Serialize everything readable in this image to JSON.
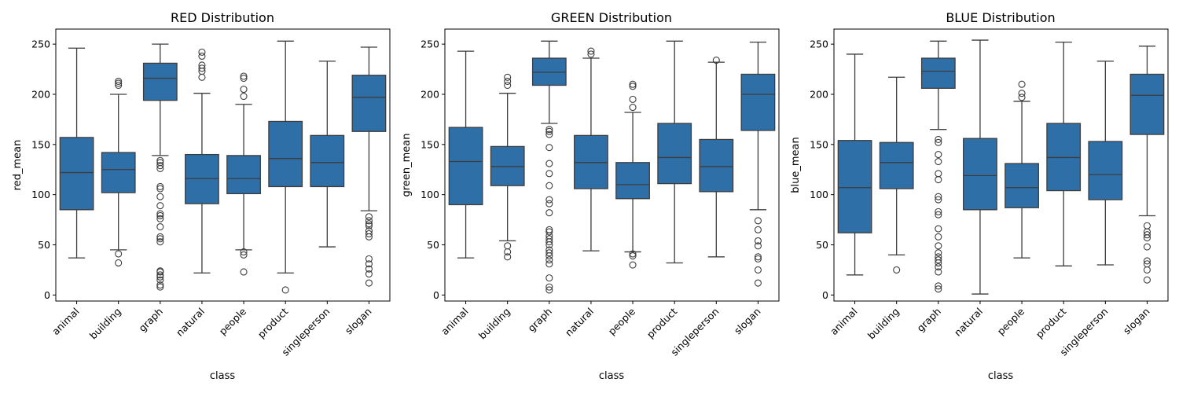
{
  "chart_data": [
    {
      "type": "box",
      "title": "RED Distribution",
      "xlabel": "class",
      "ylabel": "red_mean",
      "ylim": [
        -6,
        265
      ],
      "yticks": [
        0,
        50,
        100,
        150,
        200,
        250
      ],
      "categories": [
        "animal",
        "building",
        "graph",
        "natural",
        "people",
        "product",
        "singleperson",
        "slogan"
      ],
      "color": "#2f6fa8",
      "boxes": [
        {
          "whislo": 37,
          "q1": 85,
          "med": 122,
          "q3": 157,
          "whishi": 246,
          "fliers": []
        },
        {
          "whislo": 45,
          "q1": 102,
          "med": 125,
          "q3": 142,
          "whishi": 200,
          "fliers": [
            32,
            41,
            209,
            211,
            213
          ]
        },
        {
          "whislo": 139,
          "q1": 194,
          "med": 216,
          "q3": 231,
          "whishi": 250,
          "fliers": [
            8,
            10,
            15,
            18,
            20,
            23,
            24,
            53,
            56,
            58,
            68,
            76,
            79,
            81,
            89,
            98,
            106,
            108,
            126,
            129,
            132,
            134
          ]
        },
        {
          "whislo": 22,
          "q1": 91,
          "med": 116,
          "q3": 140,
          "whishi": 201,
          "fliers": [
            217,
            223,
            226,
            229,
            238,
            242
          ]
        },
        {
          "whislo": 45,
          "q1": 101,
          "med": 116,
          "q3": 139,
          "whishi": 190,
          "fliers": [
            23,
            40,
            43,
            198,
            205,
            216,
            218
          ]
        },
        {
          "whislo": 22,
          "q1": 108,
          "med": 136,
          "q3": 173,
          "whishi": 253,
          "fliers": [
            5
          ]
        },
        {
          "whislo": 48,
          "q1": 108,
          "med": 132,
          "q3": 159,
          "whishi": 233,
          "fliers": []
        },
        {
          "whislo": 84,
          "q1": 163,
          "med": 197,
          "q3": 219,
          "whishi": 247,
          "fliers": [
            12,
            21,
            26,
            31,
            36,
            58,
            61,
            64,
            69,
            71,
            74,
            78
          ]
        }
      ]
    },
    {
      "type": "box",
      "title": "GREEN Distribution",
      "xlabel": "class",
      "ylabel": "green_mean",
      "ylim": [
        -6,
        265
      ],
      "yticks": [
        0,
        50,
        100,
        150,
        200,
        250
      ],
      "categories": [
        "animal",
        "building",
        "graph",
        "natural",
        "people",
        "product",
        "singleperson",
        "slogan"
      ],
      "color": "#2f6fa8",
      "boxes": [
        {
          "whislo": 37,
          "q1": 90,
          "med": 133,
          "q3": 167,
          "whishi": 243,
          "fliers": []
        },
        {
          "whislo": 54,
          "q1": 109,
          "med": 128,
          "q3": 148,
          "whishi": 201,
          "fliers": [
            38,
            43,
            49,
            209,
            213,
            217
          ]
        },
        {
          "whislo": 171,
          "q1": 209,
          "med": 222,
          "q3": 236,
          "whishi": 253,
          "fliers": [
            5,
            8,
            17,
            31,
            35,
            39,
            42,
            45,
            50,
            53,
            56,
            59,
            63,
            65,
            82,
            91,
            95,
            109,
            121,
            131,
            147,
            160,
            163,
            165
          ]
        },
        {
          "whislo": 44,
          "q1": 106,
          "med": 132,
          "q3": 159,
          "whishi": 236,
          "fliers": [
            240,
            243
          ]
        },
        {
          "whislo": 43,
          "q1": 96,
          "med": 110,
          "q3": 132,
          "whishi": 182,
          "fliers": [
            30,
            39,
            41,
            187,
            195,
            208,
            210
          ]
        },
        {
          "whislo": 32,
          "q1": 111,
          "med": 137,
          "q3": 171,
          "whishi": 253,
          "fliers": []
        },
        {
          "whislo": 38,
          "q1": 103,
          "med": 128,
          "q3": 155,
          "whishi": 232,
          "fliers": [
            234
          ]
        },
        {
          "whislo": 85,
          "q1": 164,
          "med": 200,
          "q3": 220,
          "whishi": 252,
          "fliers": [
            12,
            25,
            36,
            38,
            49,
            54,
            65,
            74
          ]
        }
      ]
    },
    {
      "type": "box",
      "title": "BLUE Distribution",
      "xlabel": "class",
      "ylabel": "blue_mean",
      "ylim": [
        -6,
        265
      ],
      "yticks": [
        0,
        50,
        100,
        150,
        200,
        250
      ],
      "categories": [
        "animal",
        "building",
        "graph",
        "natural",
        "people",
        "product",
        "singleperson",
        "slogan"
      ],
      "color": "#2f6fa8",
      "boxes": [
        {
          "whislo": 20,
          "q1": 62,
          "med": 107,
          "q3": 154,
          "whishi": 240,
          "fliers": []
        },
        {
          "whislo": 40,
          "q1": 106,
          "med": 132,
          "q3": 152,
          "whishi": 217,
          "fliers": [
            25
          ]
        },
        {
          "whislo": 165,
          "q1": 206,
          "med": 223,
          "q3": 236,
          "whishi": 253,
          "fliers": [
            6,
            9,
            23,
            28,
            32,
            35,
            38,
            42,
            49,
            58,
            66,
            80,
            83,
            95,
            98,
            115,
            121,
            133,
            140,
            152,
            155
          ]
        },
        {
          "whislo": 1,
          "q1": 85,
          "med": 119,
          "q3": 156,
          "whishi": 254,
          "fliers": []
        },
        {
          "whislo": 37,
          "q1": 87,
          "med": 107,
          "q3": 131,
          "whishi": 193,
          "fliers": [
            197,
            201,
            210
          ]
        },
        {
          "whislo": 29,
          "q1": 104,
          "med": 137,
          "q3": 171,
          "whishi": 252,
          "fliers": []
        },
        {
          "whislo": 30,
          "q1": 95,
          "med": 120,
          "q3": 153,
          "whishi": 233,
          "fliers": []
        },
        {
          "whislo": 79,
          "q1": 160,
          "med": 199,
          "q3": 220,
          "whishi": 248,
          "fliers": [
            15,
            25,
            31,
            34,
            48,
            57,
            60,
            63,
            69
          ]
        }
      ]
    }
  ]
}
